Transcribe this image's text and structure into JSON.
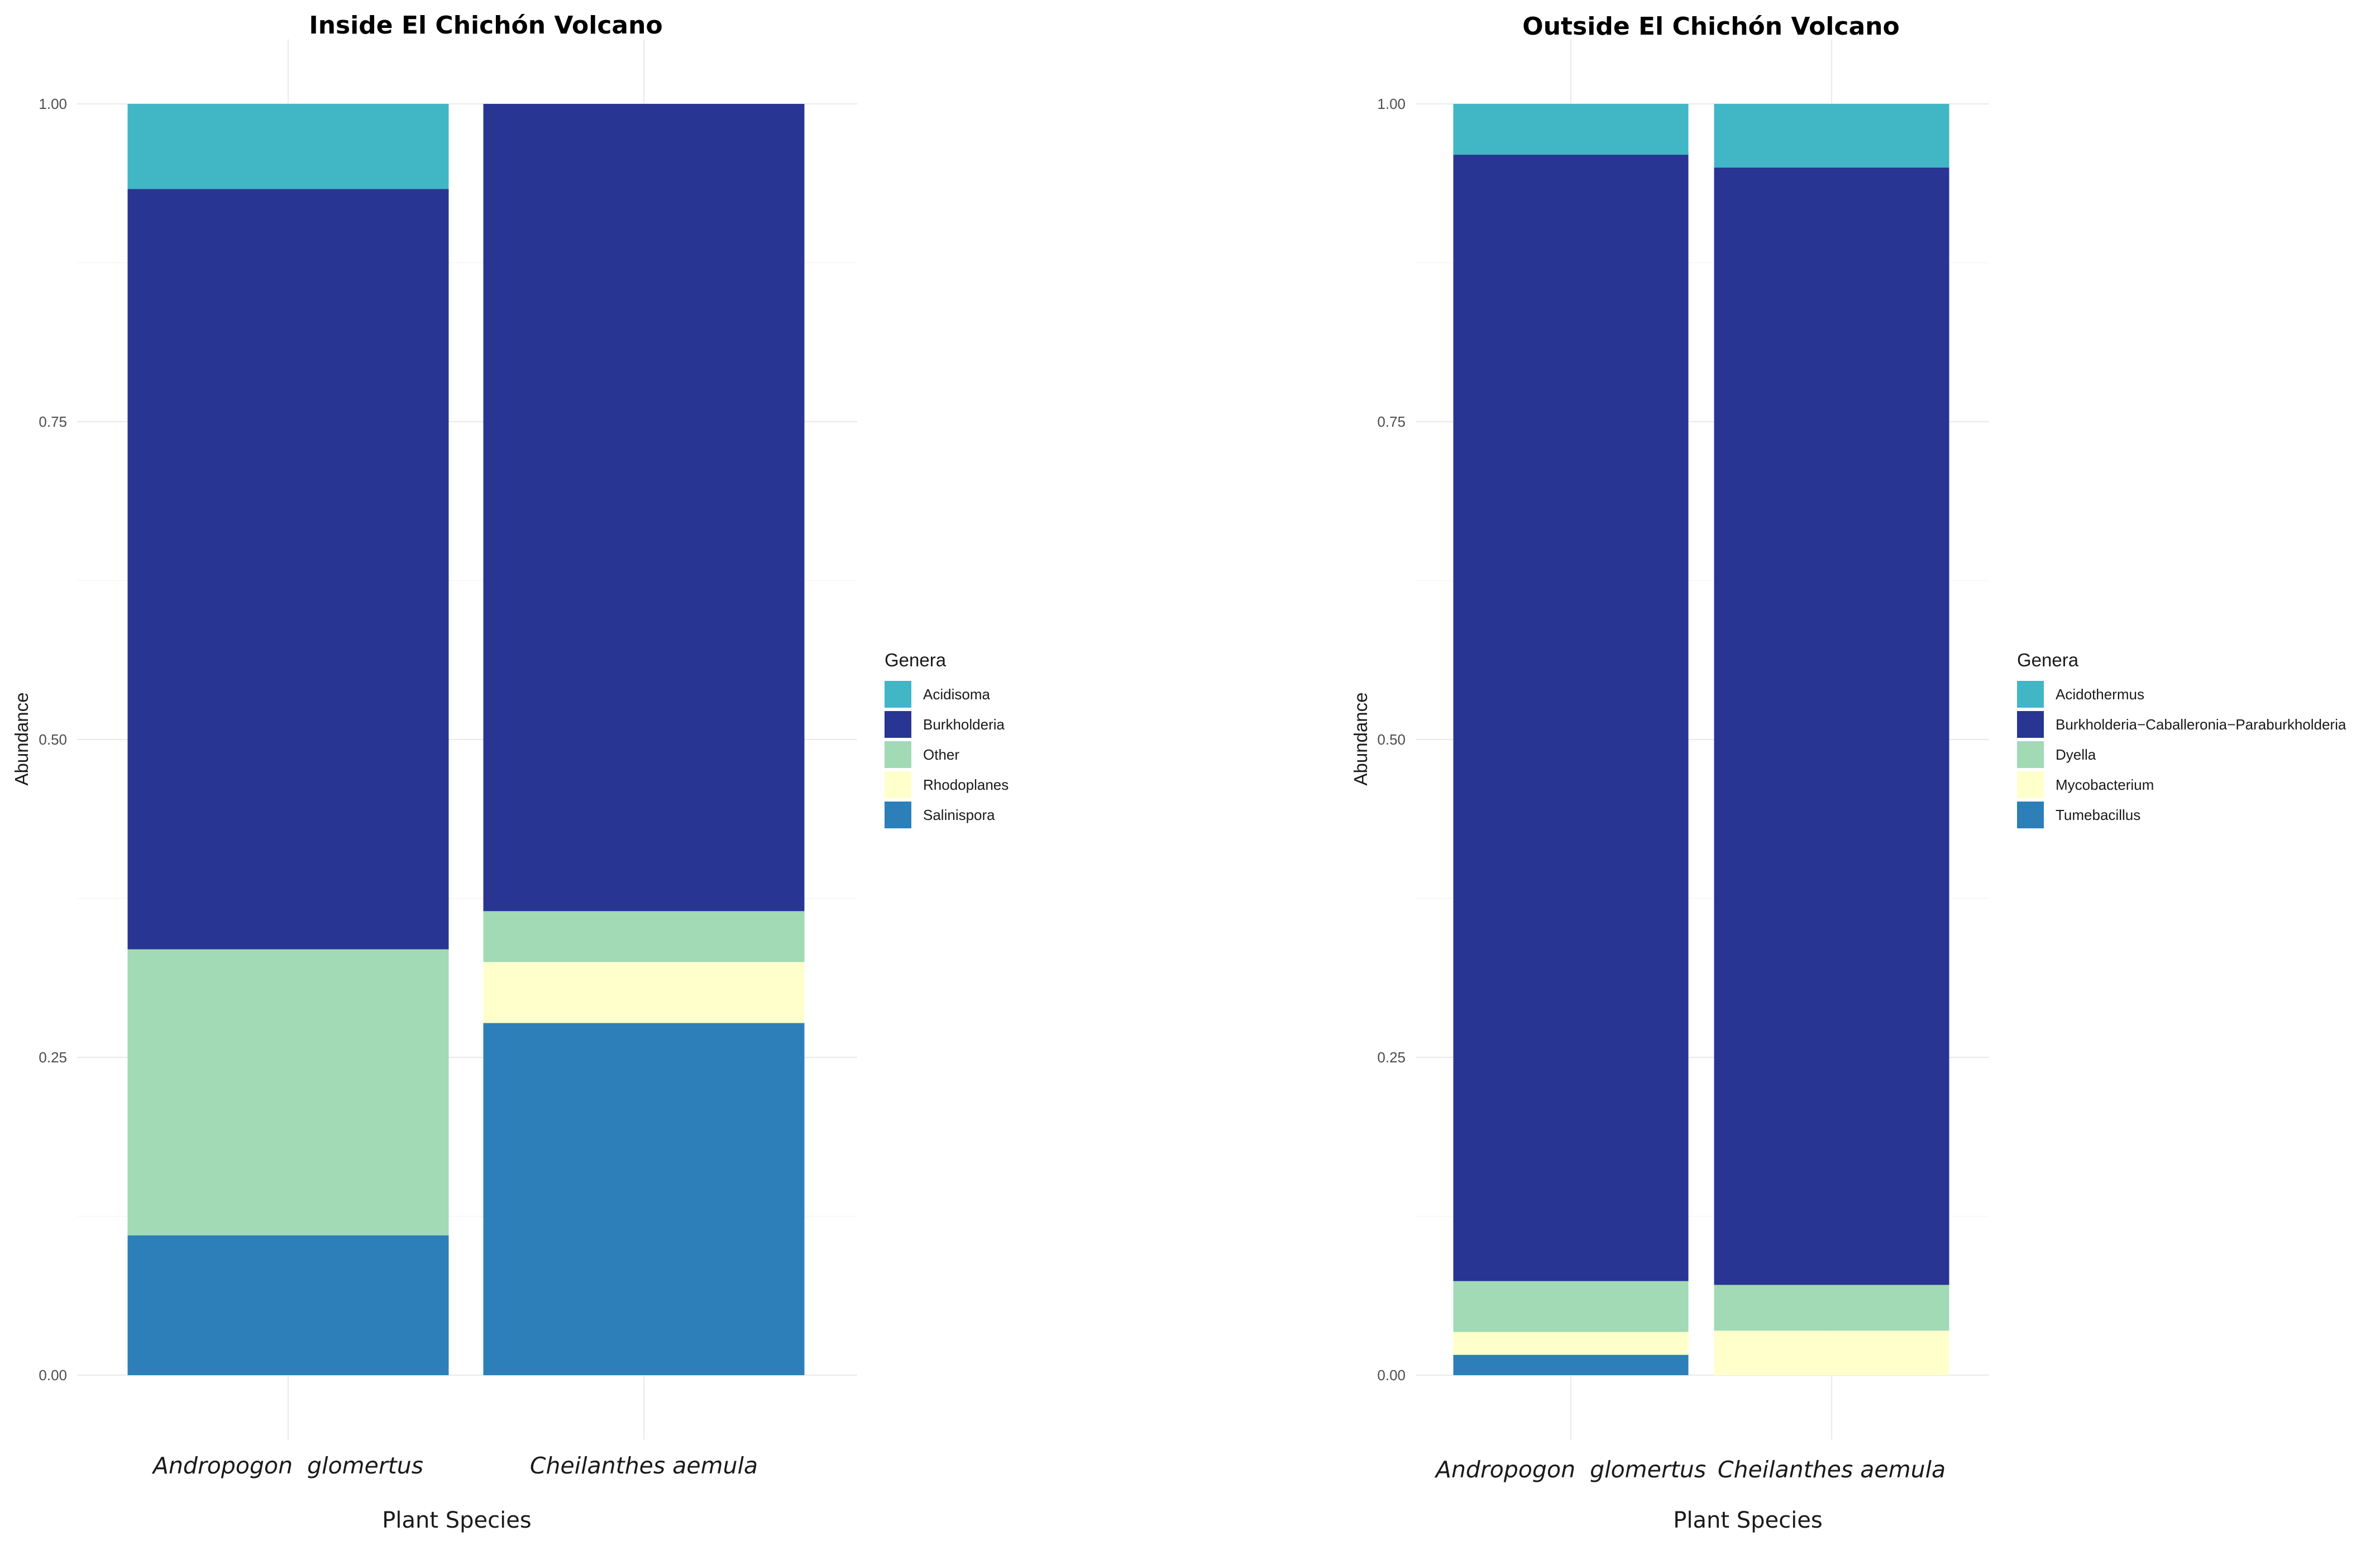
{
  "chart_data": [
    {
      "type": "bar",
      "stacked": true,
      "title": "Inside  El Chichón Volcano",
      "xlabel": "Plant Species",
      "ylabel": "Abundance",
      "ylim": [
        0,
        1
      ],
      "y_ticks": [
        "0.00",
        "0.25",
        "0.50",
        "0.75",
        "1.00"
      ],
      "categories": [
        "Andropogon  glomertus",
        "Cheilanthes aemula"
      ],
      "legend_title": "Genera",
      "legend_position": "right",
      "series": [
        {
          "name": "Acidisoma",
          "color": "#41b6c4",
          "values": [
            0.067,
            0.0
          ]
        },
        {
          "name": "Burkholderia",
          "color": "#283593",
          "values": [
            0.598,
            0.635
          ]
        },
        {
          "name": "Other",
          "color": "#a1dab4",
          "values": [
            0.225,
            0.04
          ]
        },
        {
          "name": "Rhodoplanes",
          "color": "#ffffcc",
          "values": [
            0.0,
            0.048
          ]
        },
        {
          "name": "Salinispora",
          "color": "#2c7fb8",
          "values": [
            0.11,
            0.277
          ]
        }
      ]
    },
    {
      "type": "bar",
      "stacked": true,
      "title": "Outside  El Chichón Volcano",
      "xlabel": "Plant Species",
      "ylabel": "Abundance",
      "ylim": [
        0,
        1
      ],
      "y_ticks": [
        "0.00",
        "0.25",
        "0.50",
        "0.75",
        "1.00"
      ],
      "categories": [
        "Andropogon  glomertus",
        "Cheilanthes aemula"
      ],
      "legend_title": "Genera",
      "legend_position": "right",
      "series": [
        {
          "name": "Acidothermus",
          "color": "#41b6c4",
          "values": [
            0.04,
            0.05
          ]
        },
        {
          "name": "Burkholderia−Caballeronia−Paraburkholderia",
          "color": "#283593",
          "values": [
            0.886,
            0.879
          ]
        },
        {
          "name": "Dyella",
          "color": "#a1dab4",
          "values": [
            0.04,
            0.036
          ]
        },
        {
          "name": "Mycobacterium",
          "color": "#ffffcc",
          "values": [
            0.018,
            0.035
          ]
        },
        {
          "name": "Tumebacillus",
          "color": "#2c7fb8",
          "values": [
            0.016,
            0.0
          ]
        }
      ]
    }
  ]
}
